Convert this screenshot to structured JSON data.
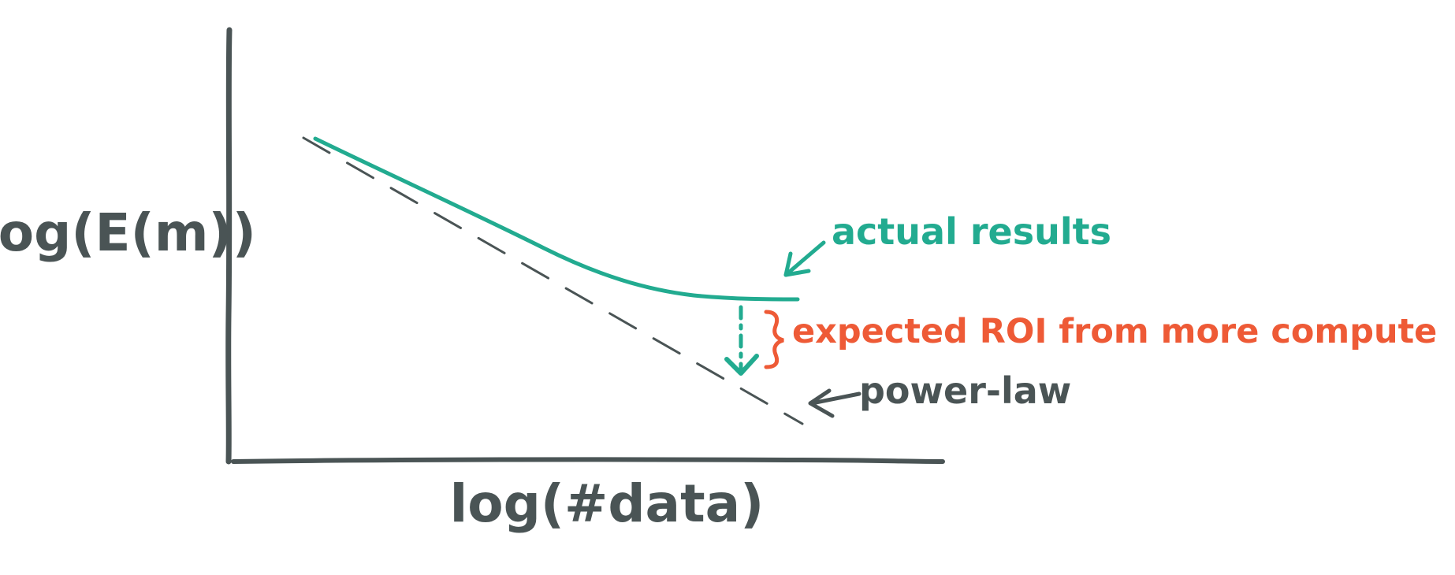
{
  "diagram": {
    "ylabel": "log(E(m))",
    "xlabel": "log(#data)",
    "annotations": {
      "actual": "actual results",
      "expected": "expected ROI from more compute",
      "power_law": "power-law"
    },
    "colors": {
      "ink": "#4a5455",
      "actual": "#22ab90",
      "expected": "#ee5a36"
    }
  }
}
